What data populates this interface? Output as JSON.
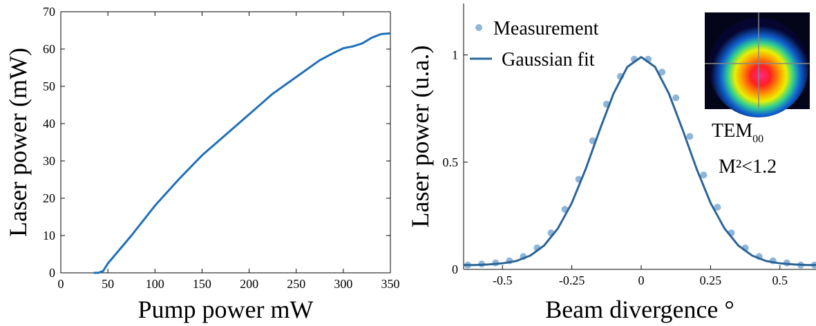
{
  "chart_data": [
    {
      "type": "line",
      "x_label": "Pump power mW",
      "y_label": "Laser power (mW)",
      "x": [
        35,
        40,
        45,
        50,
        75,
        100,
        125,
        150,
        175,
        200,
        225,
        250,
        275,
        290,
        300,
        310,
        320,
        330,
        340,
        350
      ],
      "values": [
        0,
        0,
        0.5,
        2.5,
        10,
        18,
        25,
        31.5,
        37,
        42.5,
        48,
        52.5,
        57,
        59,
        60.2,
        60.7,
        61.5,
        63,
        64,
        64.2
      ],
      "color": "#1f6fb8",
      "xlim": [
        0,
        350
      ],
      "ylim": [
        0,
        70
      ],
      "xticks": [
        0,
        50,
        100,
        150,
        200,
        250,
        300,
        350
      ],
      "yticks": [
        0,
        10,
        20,
        30,
        40,
        50,
        60,
        70
      ],
      "frame": "box"
    },
    {
      "type": "scatter",
      "x_label": "Beam divergence °",
      "y_label": "Laser power (u.a.)",
      "series": [
        {
          "name": "Measurement",
          "mode": "markers",
          "color": "#8fb5d8",
          "x": [
            -0.625,
            -0.575,
            -0.525,
            -0.475,
            -0.425,
            -0.375,
            -0.325,
            -0.275,
            -0.225,
            -0.175,
            -0.125,
            -0.075,
            -0.025,
            0.025,
            0.075,
            0.125,
            0.175,
            0.225,
            0.275,
            0.325,
            0.375,
            0.425,
            0.475,
            0.525,
            0.575,
            0.625
          ],
          "values": [
            0.02,
            0.025,
            0.03,
            0.04,
            0.06,
            0.1,
            0.17,
            0.28,
            0.42,
            0.6,
            0.77,
            0.9,
            0.98,
            0.98,
            0.92,
            0.8,
            0.62,
            0.44,
            0.29,
            0.17,
            0.1,
            0.06,
            0.04,
            0.03,
            0.02,
            0.02
          ]
        },
        {
          "name": "Gaussian fit",
          "mode": "line",
          "color": "#2a6496",
          "x": [
            -0.64,
            -0.6,
            -0.55,
            -0.5,
            -0.45,
            -0.4,
            -0.35,
            -0.3,
            -0.25,
            -0.2,
            -0.15,
            -0.1,
            -0.05,
            0,
            0.05,
            0.1,
            0.15,
            0.2,
            0.25,
            0.3,
            0.35,
            0.4,
            0.45,
            0.5,
            0.55,
            0.6,
            0.63
          ],
          "values": [
            0.02,
            0.02,
            0.023,
            0.028,
            0.039,
            0.064,
            0.111,
            0.191,
            0.31,
            0.468,
            0.649,
            0.819,
            0.944,
            0.99,
            0.944,
            0.819,
            0.649,
            0.468,
            0.31,
            0.191,
            0.111,
            0.064,
            0.039,
            0.028,
            0.023,
            0.02,
            0.02
          ]
        }
      ],
      "xlim": [
        -0.64,
        0.63
      ],
      "ylim": [
        0,
        1.24
      ],
      "xticks": [
        -0.5,
        -0.25,
        0,
        0.25,
        0.5
      ],
      "yticks": [
        0,
        0.5,
        1
      ],
      "frame": "axes",
      "annotations": [
        {
          "text": "TEM",
          "subscript": "00"
        },
        {
          "text": "M²<1.2"
        }
      ]
    }
  ]
}
